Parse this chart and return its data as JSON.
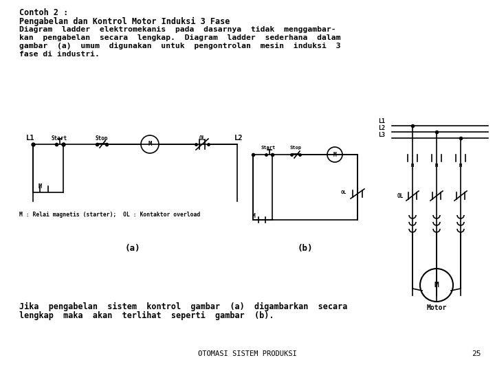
{
  "title_line1": "Contoh 2 :",
  "title_line2": "Pengabelan dan Kontrol Motor Induksi 3 Fase",
  "para_lines": [
    "Diagram  ladder  elektromekanis  pada  dasarnya  tidak  menggambar-",
    "kan  pengabelan  secara  lengkap.  Diagram  ladder  sederhana  dalam",
    "gambar  (a)  umum  digunakan  untuk  pengontrolan  mesin  induksi  3",
    "fase di industri."
  ],
  "caption_a": "M : Relai magnetis (starter);  OL : Kontaktor overload",
  "label_a": "(a)",
  "label_b": "(b)",
  "bottom_lines": [
    "Jika  pengabelan  sistem  kontrol  gambar  (a)  digambarkan  secara",
    "lengkap  maka  akan  terlihat  seperti  gambar  (b)."
  ],
  "footer": "OTOMASI SISTEM PRODUKSI",
  "page_num": "25",
  "bg_color": "#ffffff",
  "text_color": "#000000"
}
